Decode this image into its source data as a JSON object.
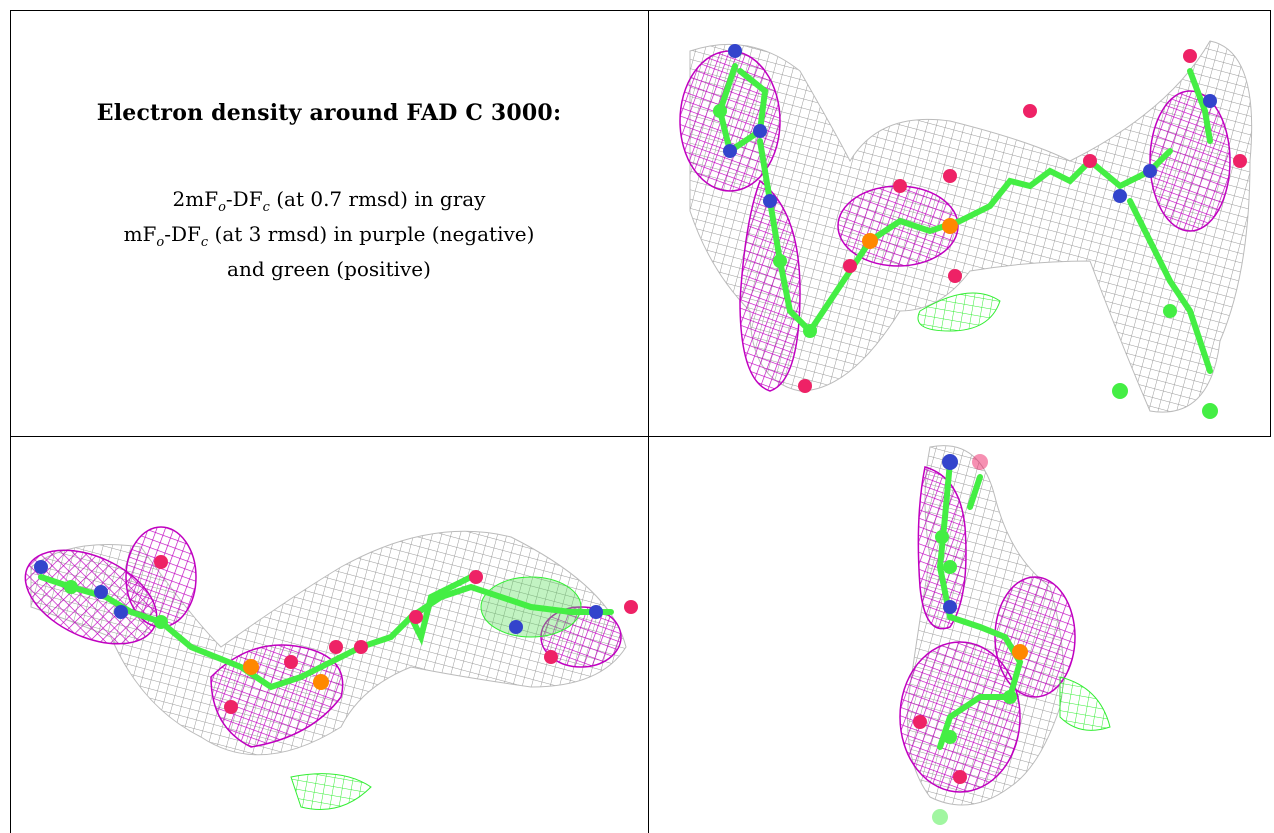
{
  "caption": {
    "title": "Electron density around FAD C 3000:",
    "line1_prefix": "2mF",
    "line1_sub1": "o",
    "line1_mid": "-DF",
    "line1_sub2": "c",
    "line1_suffix": " (at 0.7 rmsd) in gray",
    "line2_prefix": "mF",
    "line2_sub1": "o",
    "line2_mid": "-DF",
    "line2_sub2": "c",
    "line2_suffix": " (at 3 rmsd) in purple (negative)",
    "line3": "and green (positive)"
  },
  "colors": {
    "mesh_2fofc": "#9a9a9a",
    "mesh_negative": "#c000c0",
    "mesh_positive": "#33ee33",
    "carbon": "#44ee44",
    "nitrogen": "#3344cc",
    "oxygen": "#ee2266",
    "phosphorus": "#ff8800",
    "border": "#000000"
  },
  "panels": [
    {
      "name": "view-top-right",
      "description_icon": "fad-density-view-1"
    },
    {
      "name": "view-bottom-left",
      "description_icon": "fad-density-view-2"
    },
    {
      "name": "view-bottom-right",
      "description_icon": "fad-density-view-3"
    }
  ]
}
